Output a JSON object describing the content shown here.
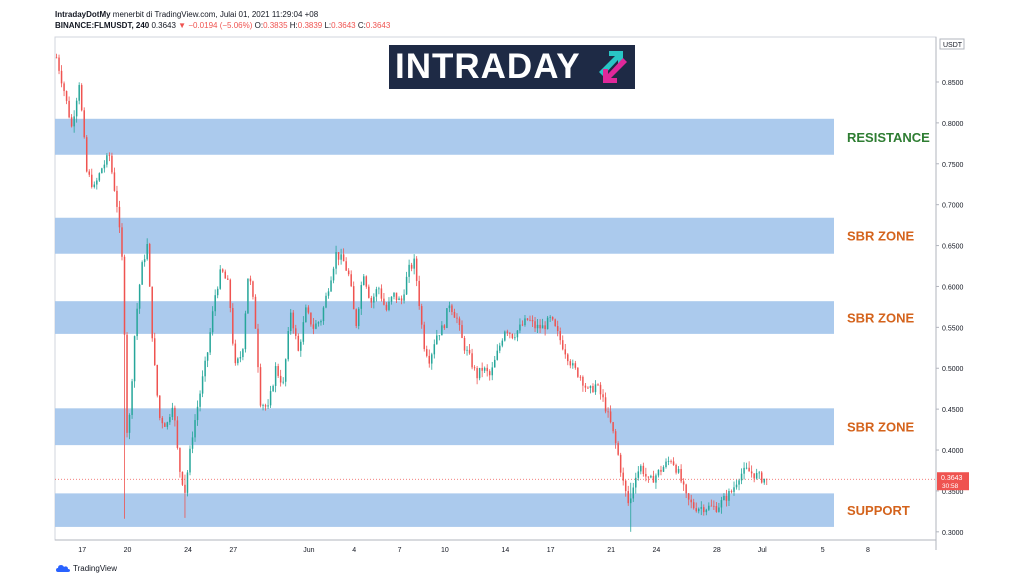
{
  "header": {
    "author": "IntradayDotMy",
    "publish_text": "menerbit di TradingView.com, Julai 01, 2021 11:29:04 +08",
    "symbol": "BINANCE:FLMUSDT, 240",
    "last_price": "0.3643",
    "change": "−0.0194 (−5.06%)",
    "open_label": "O:",
    "open": "0.3835",
    "high_label": "H:",
    "high": "0.3839",
    "low_label": "L:",
    "low": "0.3643",
    "close_label": "C:",
    "close": "0.3643"
  },
  "logo": {
    "text": "INTRADAY"
  },
  "footer": {
    "brand": "TradingView"
  },
  "colors": {
    "up": "#26a69a",
    "down": "#ef5350",
    "zone_fill": "#a4c6ec",
    "resistance_label": "#2e7d32",
    "zone_label": "#d4631c",
    "logo_bg": "#1e2a45",
    "logo_accent_teal": "#29c5c5",
    "logo_accent_magenta": "#e0289a"
  },
  "chart_data": {
    "type": "candlestick",
    "symbol": "FLMUSDT",
    "currency": "USDT",
    "timeframe": "240",
    "ylim": [
      0.29,
      0.905
    ],
    "y_ticks": [
      0.3,
      0.35,
      0.4,
      0.45,
      0.5,
      0.55,
      0.6,
      0.65,
      0.7,
      0.75,
      0.8,
      0.85
    ],
    "y_tick_labels": [
      "0.3000",
      "0.3500",
      "0.4000",
      "0.4500",
      "0.5000",
      "0.5500",
      "0.6000",
      "0.6500",
      "0.7000",
      "0.7500",
      "0.8000",
      "0.8500"
    ],
    "x_ticks": [
      {
        "label": "17",
        "day": 17
      },
      {
        "label": "20",
        "day": 20
      },
      {
        "label": "24",
        "day": 24
      },
      {
        "label": "27",
        "day": 27
      },
      {
        "label": "Jun",
        "day": 32
      },
      {
        "label": "4",
        "day": 35
      },
      {
        "label": "7",
        "day": 38
      },
      {
        "label": "10",
        "day": 41
      },
      {
        "label": "14",
        "day": 45
      },
      {
        "label": "17",
        "day": 48
      },
      {
        "label": "21",
        "day": 52
      },
      {
        "label": "24",
        "day": 55
      },
      {
        "label": "28",
        "day": 59
      },
      {
        "label": "Jul",
        "day": 62
      },
      {
        "label": "5",
        "day": 66
      },
      {
        "label": "8",
        "day": 69
      }
    ],
    "x_range_days": [
      15.2,
      73.5
    ],
    "last_price": 0.3643,
    "last_price_label": "0.3643",
    "countdown": "30:58",
    "zones": [
      {
        "label": "RESISTANCE",
        "low": 0.761,
        "high": 0.805,
        "kind": "resistance"
      },
      {
        "label": "SBR ZONE",
        "low": 0.64,
        "high": 0.684,
        "kind": "sbr"
      },
      {
        "label": "SBR ZONE",
        "low": 0.542,
        "high": 0.582,
        "kind": "sbr"
      },
      {
        "label": "SBR ZONE",
        "low": 0.406,
        "high": 0.451,
        "kind": "sbr"
      },
      {
        "label": "SUPPORT",
        "low": 0.306,
        "high": 0.347,
        "kind": "support"
      }
    ],
    "price_path": [
      [
        15.3,
        0.88
      ],
      [
        15.8,
        0.84
      ],
      [
        16.3,
        0.795
      ],
      [
        16.8,
        0.85
      ],
      [
        17.3,
        0.74
      ],
      [
        17.8,
        0.72
      ],
      [
        18.3,
        0.745
      ],
      [
        18.8,
        0.76
      ],
      [
        19.3,
        0.7
      ],
      [
        19.7,
        0.62
      ],
      [
        20.0,
        0.4
      ],
      [
        20.5,
        0.55
      ],
      [
        20.9,
        0.62
      ],
      [
        21.3,
        0.65
      ],
      [
        21.7,
        0.52
      ],
      [
        22.1,
        0.44
      ],
      [
        22.6,
        0.43
      ],
      [
        23.0,
        0.46
      ],
      [
        23.4,
        0.38
      ],
      [
        23.8,
        0.35
      ],
      [
        24.3,
        0.42
      ],
      [
        24.8,
        0.47
      ],
      [
        25.3,
        0.52
      ],
      [
        25.8,
        0.59
      ],
      [
        26.2,
        0.62
      ],
      [
        26.7,
        0.6
      ],
      [
        27.1,
        0.5
      ],
      [
        27.6,
        0.52
      ],
      [
        28.0,
        0.62
      ],
      [
        28.4,
        0.57
      ],
      [
        28.8,
        0.46
      ],
      [
        29.3,
        0.45
      ],
      [
        29.8,
        0.5
      ],
      [
        30.3,
        0.48
      ],
      [
        30.8,
        0.57
      ],
      [
        31.3,
        0.52
      ],
      [
        31.8,
        0.57
      ],
      [
        32.3,
        0.55
      ],
      [
        32.8,
        0.56
      ],
      [
        33.3,
        0.6
      ],
      [
        33.8,
        0.64
      ],
      [
        34.3,
        0.63
      ],
      [
        34.7,
        0.61
      ],
      [
        35.1,
        0.55
      ],
      [
        35.6,
        0.62
      ],
      [
        36.1,
        0.58
      ],
      [
        36.6,
        0.6
      ],
      [
        37.1,
        0.57
      ],
      [
        37.6,
        0.59
      ],
      [
        38.1,
        0.58
      ],
      [
        38.6,
        0.62
      ],
      [
        39.0,
        0.63
      ],
      [
        39.3,
        0.58
      ],
      [
        39.6,
        0.53
      ],
      [
        40.0,
        0.51
      ],
      [
        40.4,
        0.54
      ],
      [
        40.9,
        0.55
      ],
      [
        41.3,
        0.58
      ],
      [
        41.8,
        0.56
      ],
      [
        42.2,
        0.53
      ],
      [
        42.7,
        0.51
      ],
      [
        43.1,
        0.49
      ],
      [
        43.5,
        0.5
      ],
      [
        44.0,
        0.49
      ],
      [
        44.5,
        0.52
      ],
      [
        45.0,
        0.55
      ],
      [
        45.5,
        0.54
      ],
      [
        46.0,
        0.55
      ],
      [
        46.5,
        0.56
      ],
      [
        47.0,
        0.55
      ],
      [
        47.5,
        0.55
      ],
      [
        48.0,
        0.56
      ],
      [
        48.5,
        0.54
      ],
      [
        49.0,
        0.52
      ],
      [
        49.5,
        0.5
      ],
      [
        50.0,
        0.49
      ],
      [
        50.5,
        0.47
      ],
      [
        51.0,
        0.48
      ],
      [
        51.5,
        0.46
      ],
      [
        52.0,
        0.43
      ],
      [
        52.4,
        0.4
      ],
      [
        52.8,
        0.36
      ],
      [
        53.2,
        0.33
      ],
      [
        53.6,
        0.37
      ],
      [
        54.0,
        0.38
      ],
      [
        54.5,
        0.36
      ],
      [
        55.0,
        0.37
      ],
      [
        55.5,
        0.38
      ],
      [
        56.0,
        0.39
      ],
      [
        56.5,
        0.37
      ],
      [
        57.0,
        0.34
      ],
      [
        57.5,
        0.33
      ],
      [
        58.0,
        0.33
      ],
      [
        58.5,
        0.33
      ],
      [
        59.0,
        0.33
      ],
      [
        59.5,
        0.34
      ],
      [
        60.0,
        0.35
      ],
      [
        60.5,
        0.37
      ],
      [
        61.0,
        0.375
      ],
      [
        61.5,
        0.37
      ],
      [
        62.0,
        0.365
      ],
      [
        62.3,
        0.3643
      ]
    ],
    "wick_extremes": [
      {
        "day": 19.85,
        "low": 0.316,
        "high": 0.46
      },
      {
        "day": 23.75,
        "low": 0.317,
        "high": 0.37
      },
      {
        "day": 53.25,
        "low": 0.3,
        "high": 0.36
      }
    ]
  }
}
